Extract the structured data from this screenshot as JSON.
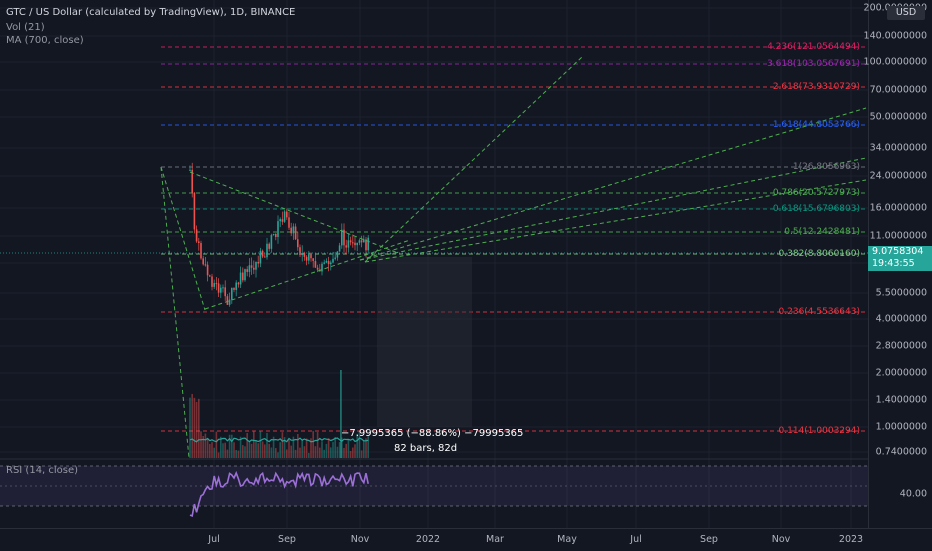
{
  "chart": {
    "title": "GTC / US Dollar (calculated by TradingView), 1D, BINANCE",
    "volume_label": "Vol (21)",
    "ma_label": "MA (700, close)",
    "rsi_label": "RSI (14, close)",
    "currency_badge": "USD",
    "last_price": "9.0758304",
    "countdown": "19:43:55"
  },
  "price_axis": {
    "ticks": [
      "200.0000000",
      "140.0000000",
      "100.0000000",
      "70.0000000",
      "50.0000000",
      "34.0000000",
      "24.0000000",
      "16.0000000",
      "11.0000000",
      "7.7000000",
      "5.5000000",
      "4.0000000",
      "2.8000000",
      "2.0000000",
      "1.4000000",
      "1.0000000",
      "0.7400000"
    ],
    "rsi_tick": "40.00"
  },
  "time_axis": {
    "ticks": [
      "Jul",
      "Sep",
      "Nov",
      "2022",
      "Mar",
      "May",
      "Jul",
      "Sep",
      "Nov",
      "2023"
    ]
  },
  "fib_levels": [
    {
      "label": "4.236(121.0564494)",
      "color": "#e91e63"
    },
    {
      "label": "3.618(103.0567691)",
      "color": "#9c27b0"
    },
    {
      "label": "2.618(73.9310729)",
      "color": "#f23645"
    },
    {
      "label": "1.618(44.8053766)",
      "color": "#2962ff"
    },
    {
      "label": "1(26.8056963)",
      "color": "#787b86"
    },
    {
      "label": "0.786(20.5727973)",
      "color": "#4caf50"
    },
    {
      "label": "0.618(15.6796803)",
      "color": "#089981"
    },
    {
      "label": "0.5(12.2428481)",
      "color": "#4caf50"
    },
    {
      "label": "0.382(8.8060160)",
      "color": "#81c784"
    },
    {
      "label": "0.236(4.5536643)",
      "color": "#f23645"
    },
    {
      "label": "0.114(1.0003294)",
      "color": "#f23645"
    }
  ],
  "measure": {
    "change": "−7.9995365 (−88.86%) −79995365",
    "bars": "82 bars, 82d"
  },
  "colors": {
    "background": "#131722",
    "up": "#26a69a",
    "down": "#ef5350",
    "trend": "#4caf50",
    "rsi": "#9c6fd6"
  }
}
